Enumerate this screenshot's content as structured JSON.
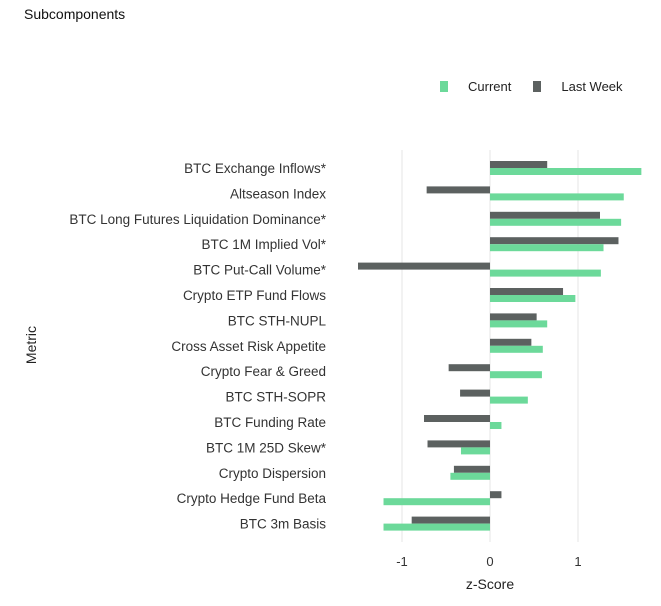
{
  "section_title": "Subcomponents",
  "legend": [
    {
      "label": "Current",
      "color": "#6cd99a"
    },
    {
      "label": "Last Week",
      "color": "#5c6160"
    }
  ],
  "chart_data": {
    "type": "bar",
    "orientation": "horizontal",
    "title": "",
    "xlabel": "z-Score",
    "ylabel": "Metric",
    "xlim": [
      -1.5,
      1.75
    ],
    "xticks": [
      -1,
      0,
      1
    ],
    "xtick_labels": [
      "-1",
      "0",
      "1"
    ],
    "grid": "vertical",
    "legend_position": "top-right",
    "categories": [
      "BTC Exchange Inflows*",
      "Altseason Index",
      "BTC Long Futures Liquidation Dominance*",
      "BTC 1M Implied Vol*",
      "BTC Put-Call Volume*",
      "Crypto ETP Fund Flows",
      "BTC STH-NUPL",
      "Cross Asset Risk Appetite",
      "Crypto Fear & Greed",
      "BTC STH-SOPR",
      "BTC Funding Rate",
      "BTC 1M 25D Skew*",
      "Crypto Dispersion",
      "Crypto Hedge Fund Beta",
      "BTC 3m Basis"
    ],
    "series": [
      {
        "name": "Current",
        "color": "#6cd99a",
        "values": [
          1.72,
          1.52,
          1.49,
          1.29,
          1.26,
          0.97,
          0.65,
          0.6,
          0.59,
          0.43,
          0.13,
          -0.33,
          -0.45,
          -1.21,
          -1.21
        ]
      },
      {
        "name": "Last Week",
        "color": "#5c6160",
        "values": [
          0.65,
          -0.72,
          1.25,
          1.46,
          -1.5,
          0.83,
          0.53,
          0.47,
          -0.47,
          -0.34,
          -0.75,
          -0.71,
          -0.41,
          0.13,
          -0.89
        ]
      }
    ]
  }
}
